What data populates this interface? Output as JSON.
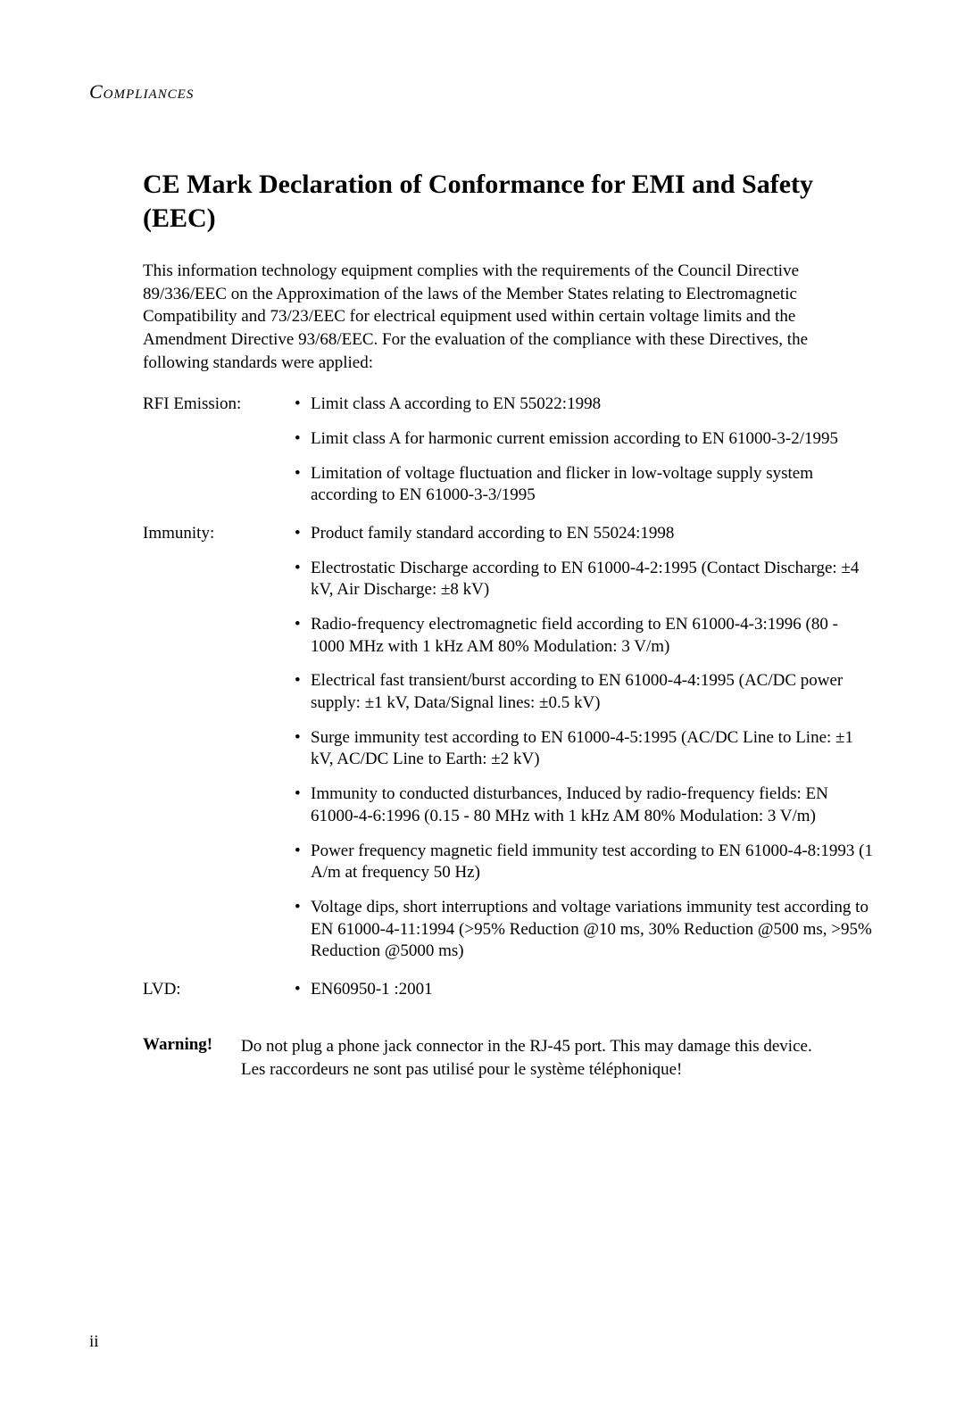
{
  "runningHead": "Compliances",
  "title": {
    "boldPart": "CE Mark Declaration of Conformance for EMI and Safety",
    "plainPart": " (EEC)"
  },
  "intro": "This information technology equipment complies with the requirements of the Council Directive 89/336/EEC on the Approximation of the laws of the Member States relating to Electromagnetic Compatibility and 73/23/EEC for electrical equipment used within certain voltage limits and the Amendment Directive 93/68/EEC. For the evaluation of the compliance with these Directives, the following standards were applied:",
  "sections": [
    {
      "label": "RFI Emission:",
      "items": [
        "Limit class A according to EN 55022:1998",
        "Limit class A for harmonic current emission according to EN 61000-3-2/1995",
        "Limitation of voltage fluctuation and flicker in low-voltage supply system according to EN 61000-3-3/1995"
      ]
    },
    {
      "label": "Immunity:",
      "items": [
        "Product family standard according to EN 55024:1998",
        "Electrostatic Discharge according to EN 61000-4-2:1995 (Contact Discharge: ±4 kV, Air Discharge: ±8 kV)",
        "Radio-frequency electromagnetic field according to EN 61000-4-3:1996 (80 - 1000 MHz with 1 kHz AM 80% Modulation: 3 V/m)",
        "Electrical fast transient/burst according to EN 61000-4-4:1995 (AC/DC power supply: ±1 kV, Data/Signal lines: ±0.5 kV)",
        "Surge immunity test according to EN 61000-4-5:1995 (AC/DC Line to Line: ±1 kV, AC/DC Line to Earth: ±2 kV)",
        "Immunity to conducted disturbances, Induced by radio-frequency fields: EN 61000-4-6:1996 (0.15 - 80 MHz with 1 kHz AM 80% Modulation: 3 V/m)",
        "Power frequency magnetic field immunity test according to EN 61000-4-8:1993 (1 A/m at frequency 50 Hz)",
        "Voltage dips, short interruptions and voltage variations immunity test according to EN 61000-4-11:1994 (>95% Reduction @10 ms, 30% Reduction @500 ms, >95% Reduction @5000 ms)"
      ]
    },
    {
      "label": "LVD:",
      "items": [
        "EN60950-1 :2001"
      ]
    }
  ],
  "warning": {
    "label": "Warning!",
    "line1": "Do not plug a phone jack connector in the RJ-45 port. This may damage this device.",
    "line2": "Les raccordeurs ne sont pas utilisé pour le système téléphonique!"
  },
  "pageNumber": "ii",
  "bulletChar": "•"
}
